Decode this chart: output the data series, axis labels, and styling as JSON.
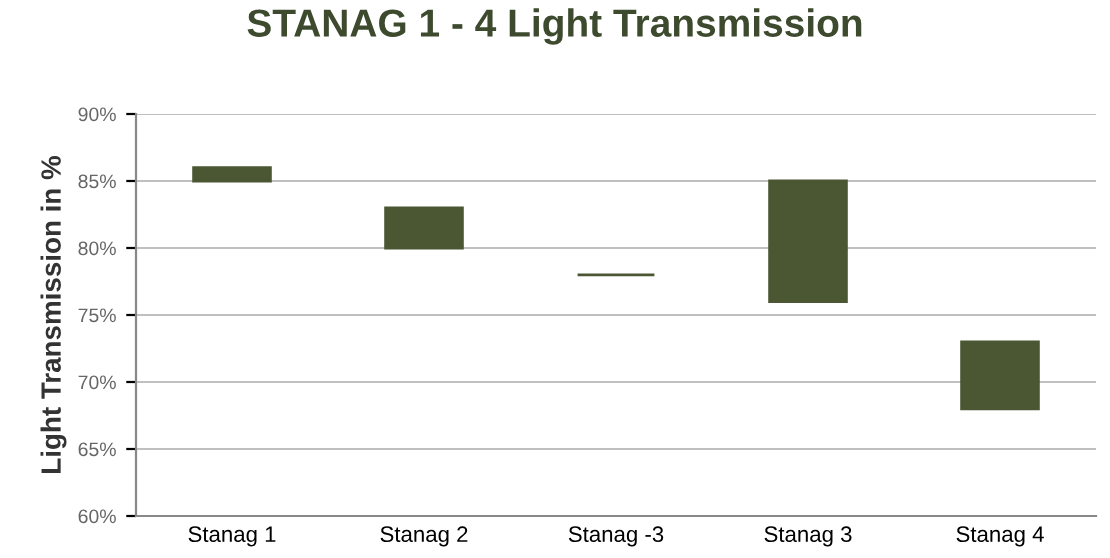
{
  "chart_data": {
    "type": "bar",
    "title": "STANAG 1 - 4 Light Transmission",
    "ylabel": "Light Transmission in %",
    "categories": [
      "Stanag 1",
      "Stanag 2",
      "Stanag -3",
      "Stanag 3",
      "Stanag 4"
    ],
    "base": [
      85,
      80,
      78,
      76,
      68
    ],
    "values": [
      1,
      3,
      0,
      9,
      5
    ],
    "color": "#4b5632",
    "ylim": [
      60,
      90
    ],
    "yticks": [
      {
        "value": 60,
        "label": "60%"
      },
      {
        "value": 65,
        "label": "65%"
      },
      {
        "value": 70,
        "label": "70%"
      },
      {
        "value": 75,
        "label": "75%"
      },
      {
        "value": 80,
        "label": "80%"
      },
      {
        "value": 85,
        "label": "85%"
      },
      {
        "value": 90,
        "label": "90%"
      }
    ],
    "grid": "y",
    "legend": false
  }
}
